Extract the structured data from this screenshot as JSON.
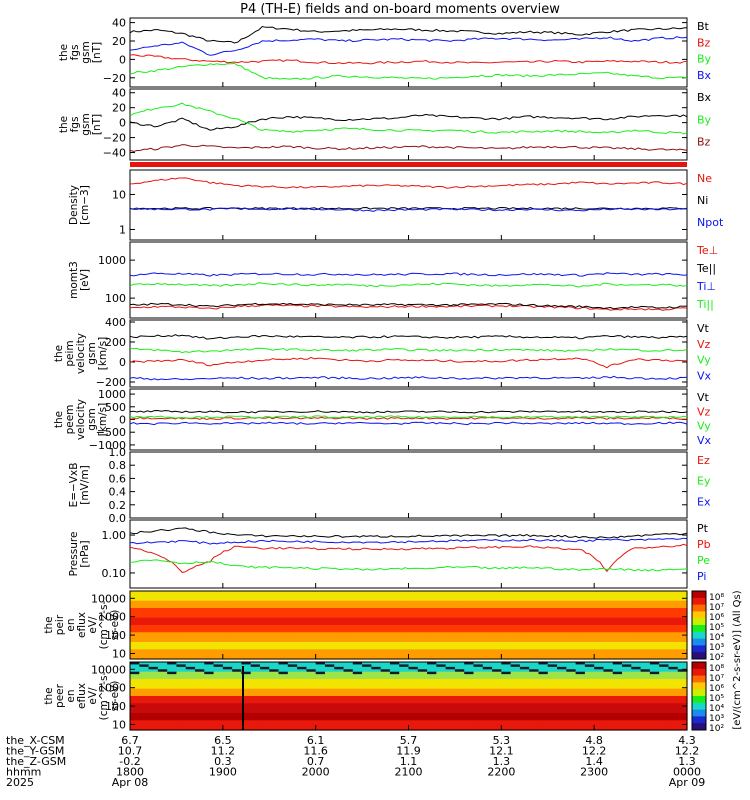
{
  "title": "P4 (TH-E) fields and on-board moments overview",
  "colors": {
    "black": "#000000",
    "red": "#e8130c",
    "green": "#1aee1a",
    "blue": "#0a14f0",
    "darkred": "#8b1010"
  },
  "chart_data": [
    {
      "type": "line",
      "panel": "fgs_gsm",
      "ylabel": [
        "the",
        "fgs",
        "gsm",
        "[nT]"
      ],
      "yticks": [
        "40",
        "20",
        "0",
        "−20"
      ],
      "ylim": [
        -30,
        45
      ],
      "series": [
        {
          "name": "Bt",
          "color": "black",
          "values": [
            30,
            32,
            28,
            20,
            18,
            35,
            33,
            30,
            31,
            32,
            33,
            32,
            31,
            30,
            28,
            30,
            29,
            27,
            30,
            32,
            33,
            34
          ]
        },
        {
          "name": "Bz",
          "color": "red",
          "values": [
            5,
            3,
            0,
            -2,
            -3,
            -2,
            -1,
            -3,
            -4,
            -4,
            -3,
            -2,
            -3,
            -4,
            -3,
            -3,
            -2,
            -3,
            -2,
            -2,
            -3,
            -3
          ]
        },
        {
          "name": "By",
          "color": "green",
          "values": [
            -15,
            -12,
            -8,
            -5,
            -5,
            -20,
            -22,
            -20,
            -18,
            -19,
            -20,
            -21,
            -20,
            -18,
            -17,
            -18,
            -17,
            -16,
            -15,
            -18,
            -20,
            -20
          ]
        },
        {
          "name": "Bx",
          "color": "blue",
          "values": [
            10,
            15,
            18,
            5,
            10,
            20,
            21,
            22,
            20,
            21,
            22,
            21,
            20,
            22,
            23,
            22,
            21,
            22,
            24,
            20,
            23,
            24
          ]
        }
      ]
    },
    {
      "type": "line",
      "panel": "fgs_gsm2",
      "ylabel": [
        "the",
        "fgs",
        "gsm",
        "[nT]"
      ],
      "yticks": [
        "40",
        "20",
        "0",
        "−20",
        "−40"
      ],
      "ylim": [
        -50,
        45
      ],
      "series": [
        {
          "name": "Bx",
          "color": "black",
          "values": [
            0,
            -5,
            5,
            -10,
            -5,
            5,
            8,
            6,
            4,
            5,
            6,
            10,
            8,
            6,
            5,
            8,
            7,
            6,
            5,
            8,
            10,
            9
          ]
        },
        {
          "name": "By",
          "color": "green",
          "values": [
            10,
            20,
            25,
            15,
            5,
            -10,
            -12,
            -10,
            -8,
            -9,
            -10,
            -11,
            -10,
            -12,
            -13,
            -12,
            -11,
            -12,
            -14,
            -10,
            -13,
            -14
          ]
        },
        {
          "name": "Bz",
          "color": "darkred",
          "values": [
            -38,
            -35,
            -30,
            -32,
            -34,
            -33,
            -32,
            -34,
            -35,
            -34,
            -33,
            -32,
            -33,
            -34,
            -35,
            -33,
            -32,
            -33,
            -34,
            -35,
            -36,
            -37
          ]
        }
      ]
    },
    {
      "type": "line",
      "panel": "density",
      "ylabel": [
        "Density",
        "[cm−3]"
      ],
      "yticks": [
        "10",
        "1"
      ],
      "ylim": [
        0.5,
        50
      ],
      "log": true,
      "series": [
        {
          "name": "Ne",
          "color": "red",
          "values": [
            20,
            25,
            30,
            22,
            18,
            17,
            16,
            16,
            17,
            18,
            18,
            17,
            16,
            17,
            18,
            19,
            20,
            22,
            20,
            21,
            22,
            20
          ]
        },
        {
          "name": "Ni",
          "color": "black",
          "values": [
            4,
            4,
            4,
            4,
            4,
            4,
            4,
            4,
            4,
            4,
            4,
            4,
            4,
            4,
            4,
            4,
            4,
            4,
            4,
            4,
            4,
            4
          ]
        },
        {
          "name": "Npot",
          "color": "blue",
          "values": [
            4,
            3.8,
            3.8,
            3.7,
            4,
            3.8,
            3.9,
            3.8,
            3.7,
            3.5,
            3.6,
            3.7,
            3.8,
            3.7,
            3.6,
            3.8,
            3.6,
            3.5,
            3.8,
            3.8,
            3.7,
            3.9
          ]
        }
      ]
    },
    {
      "type": "line",
      "panel": "mom_temp",
      "ylabel": [
        "momt3",
        "[eV]"
      ],
      "yticks": [
        "1000",
        "100"
      ],
      "ylim": [
        30,
        3000
      ],
      "log": true,
      "series": [
        {
          "name": "Te⊥",
          "color": "red",
          "values": [
            55,
            60,
            58,
            52,
            60,
            65,
            63,
            62,
            60,
            58,
            60,
            61,
            60,
            62,
            63,
            60,
            58,
            55,
            50,
            52,
            50,
            55
          ]
        },
        {
          "name": "Te||",
          "color": "black",
          "values": [
            65,
            70,
            68,
            60,
            66,
            72,
            70,
            68,
            67,
            66,
            68,
            67,
            66,
            68,
            70,
            66,
            62,
            60,
            55,
            58,
            56,
            60
          ]
        },
        {
          "name": "Ti⊥",
          "color": "blue",
          "values": [
            400,
            450,
            430,
            400,
            420,
            440,
            430,
            420,
            430,
            410,
            420,
            430,
            440,
            420,
            410,
            430,
            420,
            400,
            450,
            420,
            430,
            410
          ]
        },
        {
          "name": "Ti||",
          "color": "green",
          "values": [
            220,
            240,
            230,
            210,
            220,
            250,
            230,
            220,
            230,
            210,
            220,
            230,
            240,
            220,
            210,
            230,
            220,
            200,
            240,
            220,
            230,
            210
          ]
        }
      ]
    },
    {
      "type": "line",
      "panel": "peim_velocity",
      "ylabel": [
        "the",
        "peim",
        "velocity",
        "gsm",
        "[km/s]"
      ],
      "yticks": [
        "400",
        "200",
        "0",
        "−200"
      ],
      "ylim": [
        -250,
        420
      ],
      "series": [
        {
          "name": "Vt",
          "color": "black",
          "values": [
            250,
            260,
            270,
            230,
            250,
            260,
            255,
            250,
            245,
            250,
            255,
            250,
            245,
            250,
            255,
            250,
            245,
            240,
            260,
            250,
            245,
            250
          ]
        },
        {
          "name": "Vz",
          "color": "red",
          "values": [
            0,
            10,
            20,
            -30,
            0,
            20,
            30,
            40,
            20,
            10,
            20,
            15,
            10,
            5,
            10,
            20,
            30,
            40,
            -50,
            30,
            20,
            10
          ]
        },
        {
          "name": "Vy",
          "color": "green",
          "values": [
            130,
            120,
            100,
            110,
            120,
            130,
            125,
            120,
            115,
            120,
            125,
            120,
            115,
            120,
            125,
            120,
            115,
            110,
            130,
            120,
            115,
            120
          ]
        },
        {
          "name": "Vx",
          "color": "blue",
          "values": [
            -160,
            -170,
            -175,
            -165,
            -160,
            -165,
            -160,
            -155,
            -160,
            -165,
            -160,
            -155,
            -160,
            -165,
            -160,
            -155,
            -160,
            -165,
            -150,
            -160,
            -165,
            -160
          ]
        }
      ]
    },
    {
      "type": "line",
      "panel": "peem_velocity",
      "ylabel": [
        "the",
        "peem",
        "velocity",
        "gsm",
        "[km/s]"
      ],
      "yticks": [
        "1000",
        "500",
        "0",
        "−500",
        "−1000"
      ],
      "ylim": [
        -1200,
        1200
      ],
      "series": [
        {
          "name": "Vt",
          "color": "black",
          "values": [
            300,
            320,
            310,
            300,
            290,
            300,
            310,
            320,
            300,
            290,
            300,
            310,
            300,
            290,
            300,
            310,
            320,
            300,
            290,
            300,
            310,
            300
          ]
        },
        {
          "name": "Vz",
          "color": "red",
          "values": [
            50,
            60,
            40,
            30,
            50,
            60,
            40,
            50,
            60,
            40,
            50,
            60,
            40,
            50,
            60,
            40,
            50,
            60,
            40,
            50,
            60,
            40
          ]
        },
        {
          "name": "Vy",
          "color": "green",
          "values": [
            100,
            120,
            80,
            100,
            110,
            90,
            100,
            120,
            80,
            100,
            110,
            90,
            100,
            120,
            80,
            100,
            110,
            90,
            100,
            120,
            80,
            100
          ]
        },
        {
          "name": "Vx",
          "color": "blue",
          "values": [
            -150,
            -170,
            -130,
            -150,
            -160,
            -140,
            -150,
            -170,
            -130,
            -150,
            -160,
            -140,
            -150,
            -170,
            -130,
            -150,
            -160,
            -140,
            -150,
            -170,
            -130,
            -150
          ]
        }
      ]
    },
    {
      "type": "line",
      "panel": "efield",
      "ylabel": [
        "E=−VxB",
        "[mV/m]"
      ],
      "yticks": [
        "1.0",
        "0.8",
        "0.6",
        "0.4",
        "0.2",
        "0.0"
      ],
      "ylim": [
        0,
        1
      ],
      "series": [
        {
          "name": "Ez",
          "color": "red",
          "values": []
        },
        {
          "name": "Ey",
          "color": "green",
          "values": []
        },
        {
          "name": "Ex",
          "color": "blue",
          "values": []
        }
      ]
    },
    {
      "type": "line",
      "panel": "pressure",
      "ylabel": [
        "Pressure",
        "[nPa]"
      ],
      "yticks": [
        "1.00",
        "0.10"
      ],
      "ylim": [
        0.04,
        2.5
      ],
      "log": true,
      "series": [
        {
          "name": "Pt",
          "color": "black",
          "values": [
            1.1,
            1.3,
            1.5,
            1.2,
            1.0,
            0.95,
            0.95,
            0.93,
            0.92,
            0.92,
            0.93,
            0.94,
            0.95,
            0.96,
            0.97,
            0.98,
            0.95,
            0.9,
            0.85,
            0.95,
            1.05,
            1.1
          ]
        },
        {
          "name": "Pb",
          "color": "red",
          "values": [
            0.5,
            0.3,
            0.1,
            0.2,
            0.5,
            0.45,
            0.45,
            0.43,
            0.44,
            0.42,
            0.43,
            0.44,
            0.45,
            0.47,
            0.48,
            0.5,
            0.45,
            0.4,
            0.1,
            0.45,
            0.5,
            0.55
          ]
        },
        {
          "name": "Pe",
          "color": "green",
          "values": [
            0.2,
            0.22,
            0.18,
            0.2,
            0.15,
            0.14,
            0.14,
            0.13,
            0.13,
            0.12,
            0.13,
            0.13,
            0.14,
            0.14,
            0.13,
            0.14,
            0.13,
            0.12,
            0.13,
            0.12,
            0.12,
            0.13
          ]
        },
        {
          "name": "Pi",
          "color": "blue",
          "values": [
            0.6,
            0.65,
            0.7,
            0.6,
            0.65,
            0.7,
            0.68,
            0.67,
            0.66,
            0.65,
            0.66,
            0.68,
            0.7,
            0.72,
            0.73,
            0.74,
            0.72,
            0.7,
            0.75,
            0.73,
            0.78,
            0.8
          ]
        }
      ]
    },
    {
      "type": "heatmap",
      "panel": "peir_en_eflux",
      "ylabel": [
        "the",
        "peir",
        "en",
        "eflux",
        "eV/",
        "(cm^2-s-",
        "sr-eV)"
      ],
      "yticks": [
        "10000",
        "1000",
        "100",
        "10"
      ],
      "ylim": [
        5,
        25000
      ],
      "log": true
    },
    {
      "type": "heatmap",
      "panel": "peer_en_eflux",
      "ylabel": [
        "the",
        "peer",
        "en",
        "eflux",
        "eV/",
        "(cm^2-s-",
        "sr-eV)"
      ],
      "yticks": [
        "10000",
        "1000",
        "100",
        "10"
      ],
      "ylim": [
        5,
        25000
      ],
      "log": true
    }
  ],
  "colorbar": {
    "labels": [
      "10⁸",
      "10⁷",
      "10⁶",
      "10⁵",
      "10⁴",
      "10³",
      "10²"
    ],
    "title": "[eV/(cm^2-s-sr-eV)] (All Qs)"
  },
  "footer": {
    "row_labels": [
      "the_X-CSM",
      "the_Y-GSM",
      "the_Z-GSM",
      "hhmm",
      "2025"
    ],
    "columns": [
      [
        "6.7",
        "10.7",
        "-0.2",
        "1800",
        "Apr 08"
      ],
      [
        "6.5",
        "11.2",
        "0.3",
        "1900",
        ""
      ],
      [
        "6.1",
        "11.6",
        "0.7",
        "2000",
        ""
      ],
      [
        "5.7",
        "11.9",
        "1.1",
        "2100",
        ""
      ],
      [
        "5.3",
        "12.1",
        "1.3",
        "2200",
        ""
      ],
      [
        "4.8",
        "12.2",
        "1.4",
        "2300",
        ""
      ],
      [
        "4.3",
        "12.2",
        "1.3",
        "0000",
        "Apr 09"
      ]
    ]
  }
}
